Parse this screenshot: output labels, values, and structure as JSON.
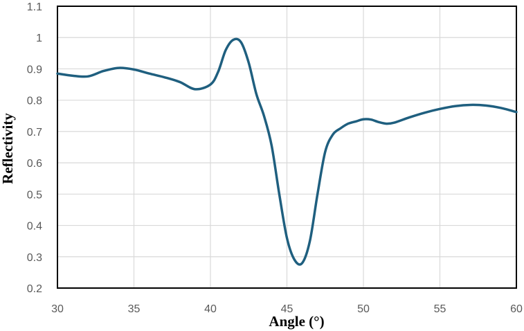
{
  "chart_data": {
    "type": "line",
    "title": "",
    "xlabel": "Angle (°)",
    "ylabel": "Reflectivity",
    "xlim": [
      30,
      60
    ],
    "ylim": [
      0.2,
      1.1
    ],
    "xticks": [
      30,
      35,
      40,
      45,
      50,
      55,
      60
    ],
    "yticks": [
      0.2,
      0.3,
      0.4,
      0.5,
      0.6,
      0.7,
      0.8,
      0.9,
      1,
      1.1
    ],
    "xtick_labels": [
      "30",
      "35",
      "40",
      "45",
      "50",
      "55",
      "60"
    ],
    "ytick_labels": [
      "0.2",
      "0.3",
      "0.4",
      "0.5",
      "0.6",
      "0.7",
      "0.8",
      "0.9",
      "1",
      "1.1"
    ],
    "grid": true,
    "line_color": "#1f5f7f",
    "series": [
      {
        "x": [
          30,
          31,
          32,
          33,
          34,
          35,
          36,
          37,
          38,
          39,
          40,
          40.5,
          41,
          41.5,
          42,
          42.5,
          43,
          43.5,
          44,
          44.5,
          45,
          45.5,
          46,
          46.5,
          47,
          47.5,
          48,
          48.5,
          49,
          49.5,
          50,
          50.5,
          51,
          51.5,
          52,
          53,
          54,
          55,
          56,
          57,
          58,
          59,
          60
        ],
        "y": [
          0.885,
          0.878,
          0.876,
          0.893,
          0.903,
          0.898,
          0.885,
          0.873,
          0.858,
          0.835,
          0.85,
          0.89,
          0.96,
          0.993,
          0.985,
          0.92,
          0.82,
          0.75,
          0.655,
          0.5,
          0.36,
          0.29,
          0.28,
          0.35,
          0.5,
          0.635,
          0.69,
          0.71,
          0.725,
          0.732,
          0.739,
          0.738,
          0.73,
          0.725,
          0.728,
          0.745,
          0.76,
          0.772,
          0.781,
          0.785,
          0.783,
          0.775,
          0.762
        ]
      }
    ]
  }
}
